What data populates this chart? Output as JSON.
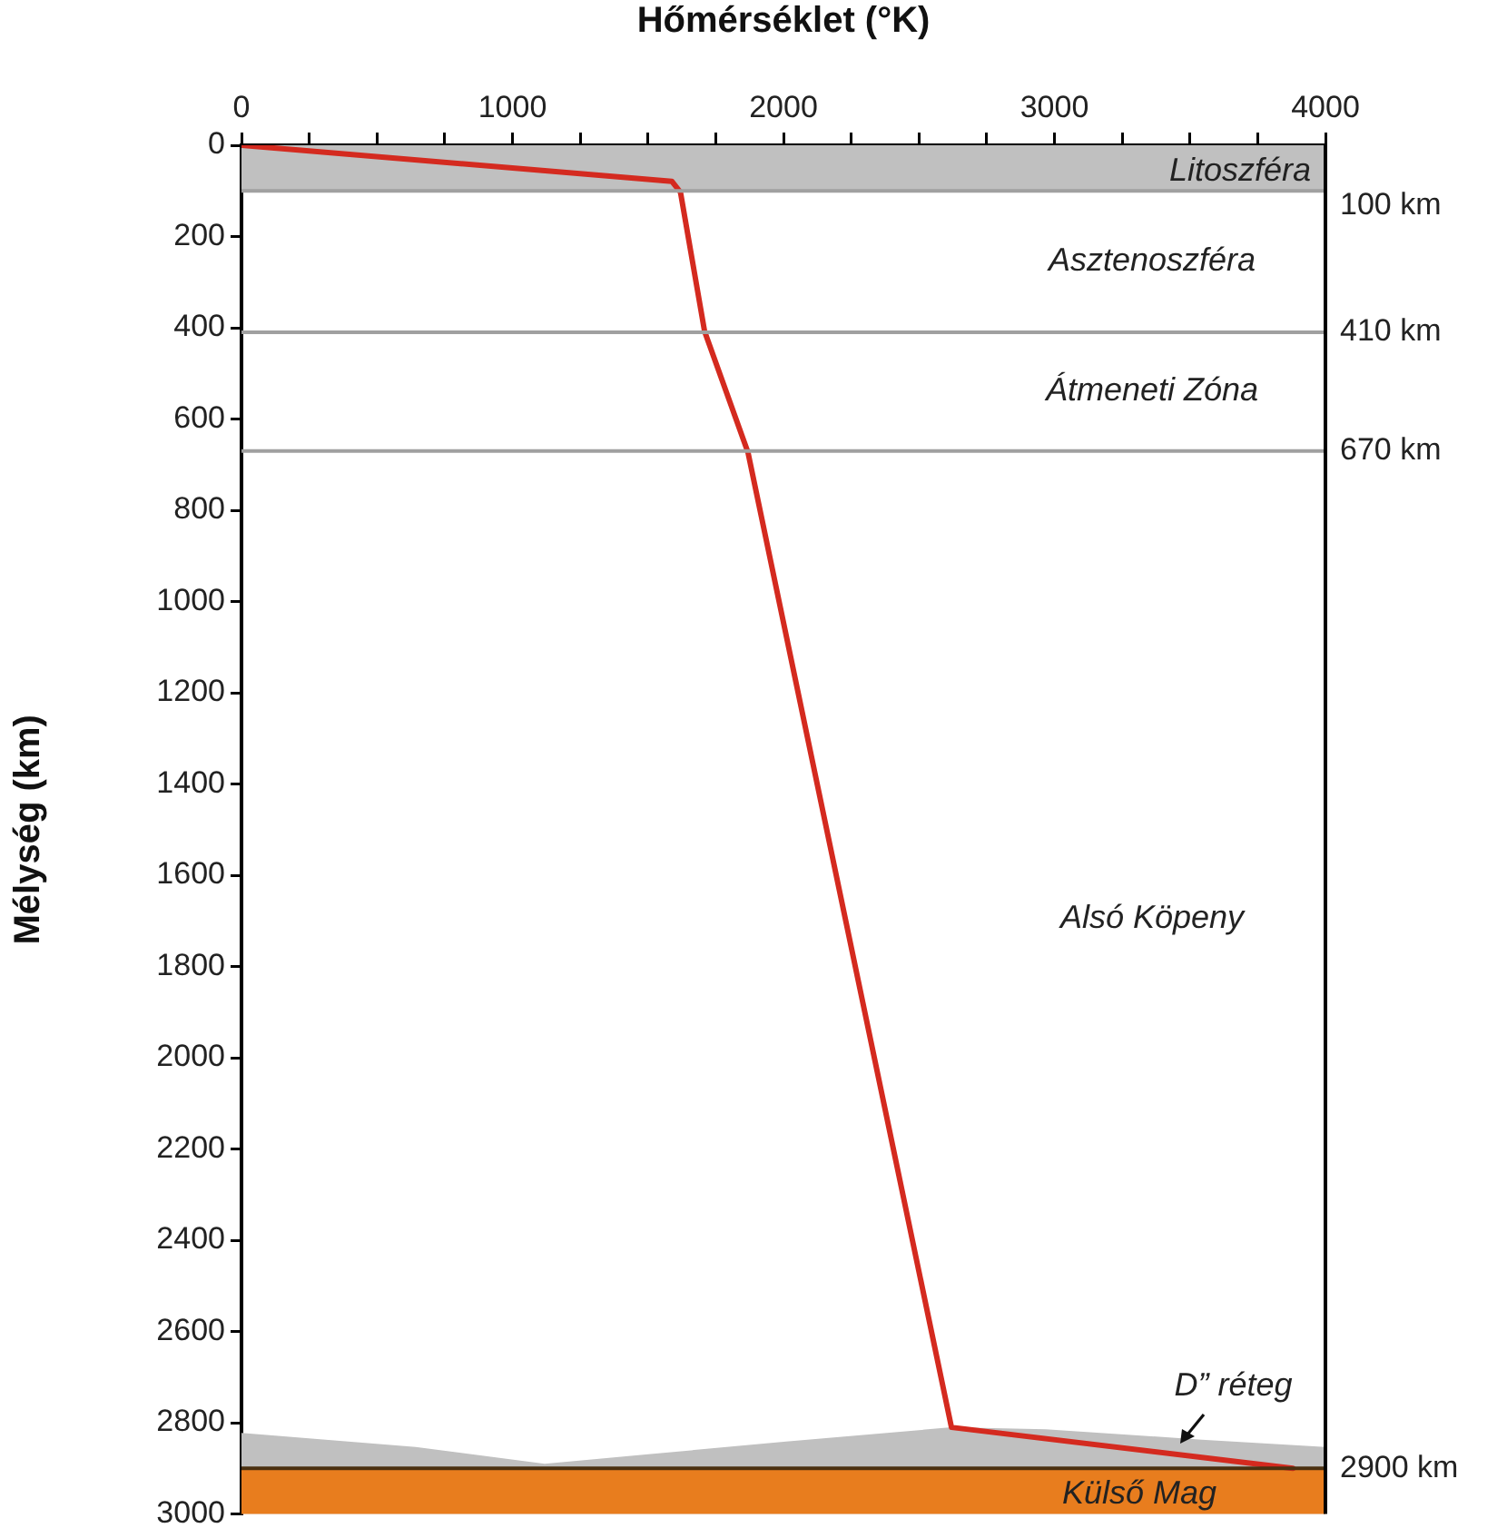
{
  "chart_data": {
    "type": "line",
    "xlabel": "Hőmérséklet (°K)",
    "ylabel": "Mélység (km)",
    "xlim": [
      0,
      4000
    ],
    "xticks": [
      0,
      {
        "value": 250,
        "label": null
      },
      {
        "value": 500,
        "label": null
      },
      {
        "value": 750,
        "label": null
      },
      1000,
      {
        "value": 1250,
        "label": null
      },
      {
        "value": 1500,
        "label": null
      },
      {
        "value": 1750,
        "label": null
      },
      2000,
      {
        "value": 2250,
        "label": null
      },
      {
        "value": 2500,
        "label": null
      },
      {
        "value": 2750,
        "label": null
      },
      3000,
      {
        "value": 3250,
        "label": null
      },
      {
        "value": 3500,
        "label": null
      },
      {
        "value": 3750,
        "label": null
      },
      4000
    ],
    "ylim": [
      3000,
      0
    ],
    "yticks": [
      0,
      200,
      400,
      600,
      800,
      1000,
      1200,
      1400,
      1600,
      1800,
      2000,
      2200,
      2400,
      2600,
      2800,
      3000
    ],
    "series": [
      {
        "type": "line",
        "color": "#d42a1f",
        "x": [
          0,
          1588,
          1620,
          1709,
          1869,
          2620,
          3880
        ],
        "values": [
          0,
          79,
          103,
          408,
          673,
          2810,
          2900
        ]
      },
      {
        "type": "area",
        "color": "#c0c0c0",
        "x": [
          0,
          643,
          1119,
          1501,
          2010,
          2620,
          2968,
          3544,
          4000,
          4000,
          0
        ],
        "values": [
          2822,
          2853,
          2890,
          2869,
          2841,
          2810,
          2814,
          2837,
          2853,
          3000,
          3000
        ]
      }
    ],
    "bands": [
      {
        "axis": "y",
        "from": 0,
        "to": 100,
        "label": "Litoszféra",
        "color": "#c0c0c0"
      },
      {
        "axis": "y",
        "from": 2900,
        "to": 3000,
        "label": "Külső Mag",
        "color": "#e87d1e"
      }
    ],
    "ref_lines": [
      {
        "axis": "y",
        "value": 100,
        "label": "100 km",
        "color": "#a0a0a0"
      },
      {
        "axis": "y",
        "value": 410,
        "label": "410 km",
        "color": "#a0a0a0"
      },
      {
        "axis": "y",
        "value": 670,
        "label": "670 km",
        "color": "#a0a0a0"
      },
      {
        "axis": "y",
        "value": 2900,
        "label": "2900 km",
        "color": "#4a3010"
      }
    ],
    "annotations": [
      "Asztenoszféra",
      "Átmeneti Zóna",
      "Alsó Köpeny",
      "D” réteg"
    ],
    "marker": "none",
    "line_style": "solid",
    "legend": false,
    "grid": false
  }
}
